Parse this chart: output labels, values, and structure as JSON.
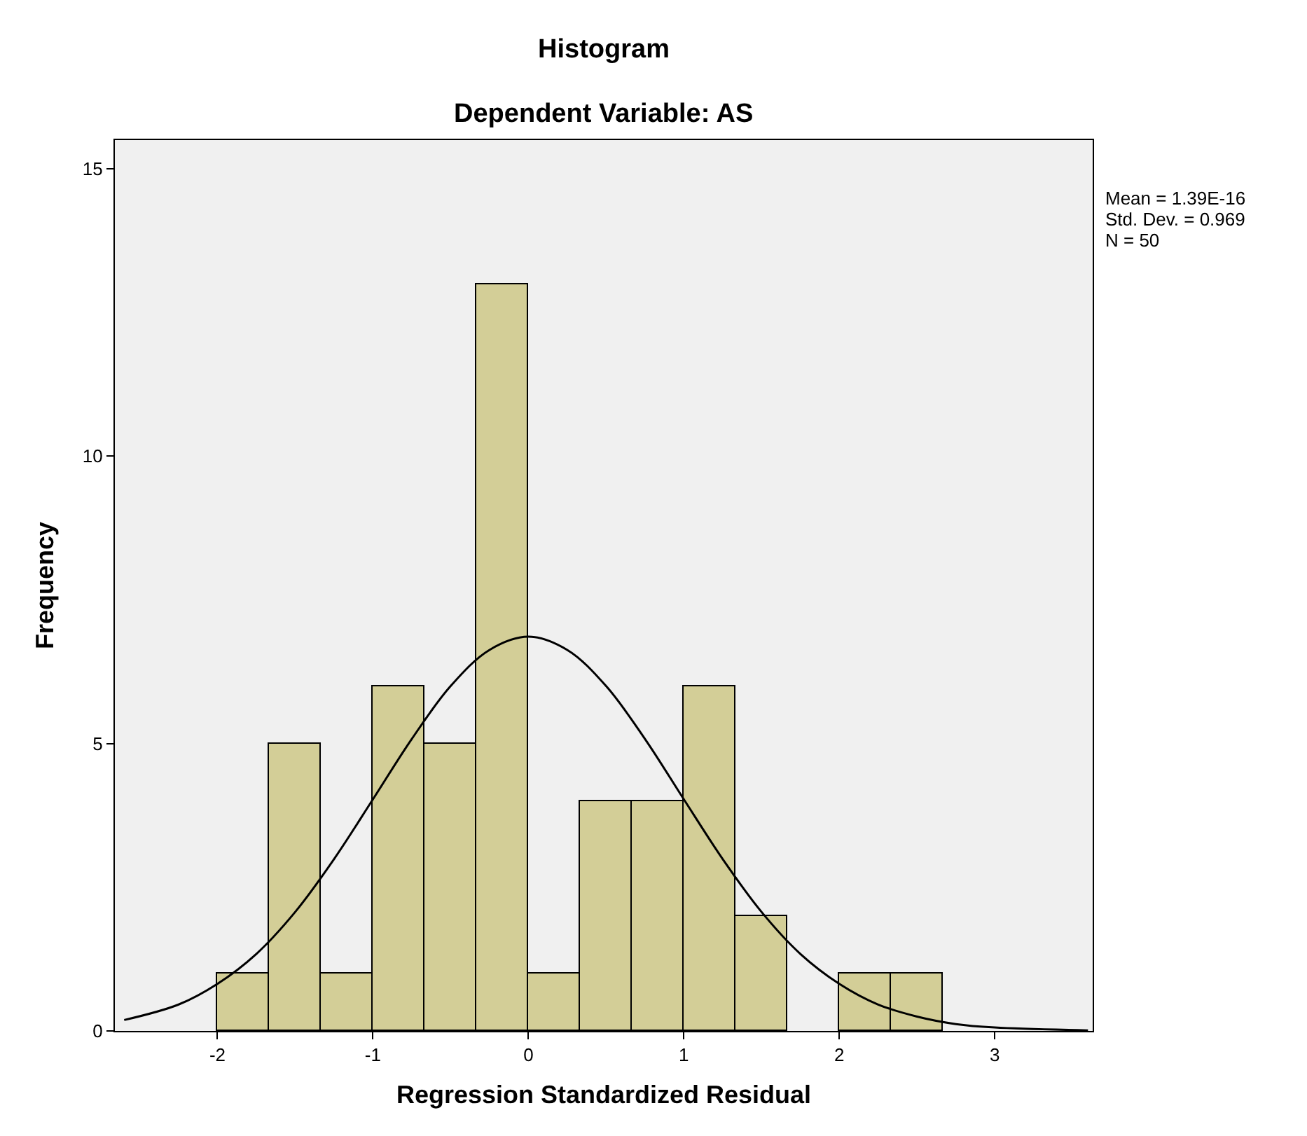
{
  "chart_data": {
    "type": "histogram",
    "title": "Histogram",
    "subtitle": "Dependent Variable: AS",
    "xlabel": "Regression Standardized Residual",
    "ylabel": "Frequency",
    "bins": [
      -2,
      -1.667,
      -1.333,
      -1,
      -0.667,
      -0.333,
      0,
      0.333,
      0.667,
      1,
      1.333,
      1.667,
      2,
      2.333,
      2.667
    ],
    "values": [
      1,
      5,
      1,
      6,
      5,
      13,
      1,
      4,
      4,
      6,
      2,
      0,
      1,
      1
    ],
    "color": "#d3ce97",
    "series": [
      {
        "type": "line",
        "color": "#000000",
        "x": [
          -2.6,
          -2.25,
          -2,
          -1.75,
          -1.5,
          -1.25,
          -1,
          -0.75,
          -0.5,
          -0.25,
          0,
          0.25,
          0.5,
          0.75,
          1,
          1.25,
          1.5,
          1.75,
          2,
          2.25,
          2.5,
          2.75,
          3,
          3.6
        ],
        "values": [
          0.19,
          0.46,
          0.82,
          1.34,
          2.07,
          2.99,
          4.03,
          5.08,
          6.0,
          6.63,
          6.86,
          6.63,
          6.0,
          5.08,
          4.03,
          2.99,
          2.07,
          1.34,
          0.82,
          0.46,
          0.25,
          0.12,
          0.06,
          0.01
        ]
      }
    ],
    "xlim": [
      -2.66,
      3.63
    ],
    "xticks": [
      -2,
      -1,
      0,
      1,
      2,
      3
    ],
    "ylim": [
      0,
      15.5
    ],
    "yticks": [
      0,
      5,
      10,
      15
    ],
    "annotations": [
      "Mean = 1.39E-16",
      "Std. Dev. = 0.969",
      "N = 50"
    ],
    "grid": false
  }
}
